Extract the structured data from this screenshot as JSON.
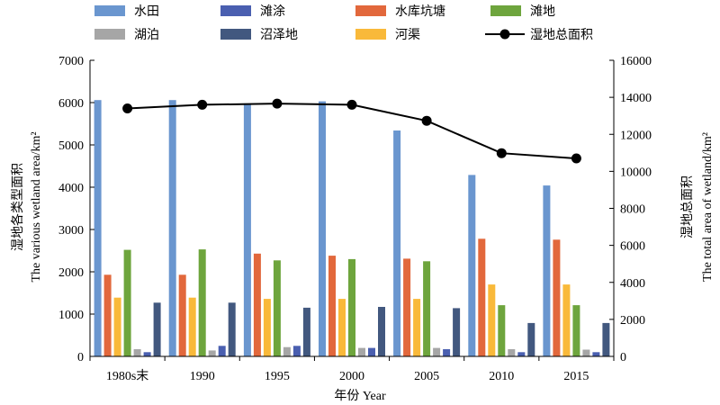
{
  "chart_data": {
    "type": "bar",
    "categories": [
      "1980s末",
      "1990",
      "1995",
      "2000",
      "2005",
      "2010",
      "2015"
    ],
    "series": [
      {
        "name": "水田",
        "color": "#6a96cf",
        "values": [
          6060,
          6060,
          5980,
          6030,
          5340,
          4290,
          4040
        ]
      },
      {
        "name": "水库坑塘",
        "color": "#e2683c",
        "values": [
          1930,
          1930,
          2430,
          2380,
          2310,
          2780,
          2760
        ]
      },
      {
        "name": "河渠",
        "color": "#f9b93a",
        "values": [
          1390,
          1390,
          1360,
          1360,
          1360,
          1700,
          1700
        ]
      },
      {
        "name": "滩地",
        "color": "#6ea53d",
        "values": [
          2520,
          2530,
          2270,
          2300,
          2250,
          1210,
          1210
        ]
      },
      {
        "name": "湖泊",
        "color": "#a6a6a6",
        "values": [
          170,
          140,
          220,
          200,
          200,
          170,
          160
        ]
      },
      {
        "name": "滩涂",
        "color": "#4a5fb0",
        "values": [
          100,
          250,
          250,
          200,
          170,
          100,
          100
        ]
      },
      {
        "name": "沼泽地",
        "color": "#42587f",
        "values": [
          1270,
          1270,
          1150,
          1170,
          1140,
          790,
          790
        ]
      }
    ],
    "line_series": {
      "name": "湿地总面积",
      "color": "#000000",
      "values": [
        13400,
        13600,
        13660,
        13600,
        12730,
        10980,
        10700
      ]
    },
    "xlabel": "年份 Year",
    "ylabel_lines": [
      "湿地各类型面积",
      "The various wetland area/km²"
    ],
    "y2label_lines": [
      "湿地总面积",
      "The total area of wetland/km²"
    ],
    "ylim": [
      0,
      7000
    ],
    "yticks": [
      0,
      1000,
      2000,
      3000,
      4000,
      5000,
      6000,
      7000
    ],
    "y2lim": [
      0,
      16000
    ],
    "y2ticks": [
      0,
      2000,
      4000,
      6000,
      8000,
      10000,
      12000,
      14000,
      16000
    ],
    "grid": false,
    "legend": [
      {
        "name": "水田",
        "kind": "bar",
        "color": "#6a96cf"
      },
      {
        "name": "滩涂",
        "kind": "bar",
        "color": "#4a5fb0"
      },
      {
        "name": "水库坑塘",
        "kind": "bar",
        "color": "#e2683c"
      },
      {
        "name": "滩地",
        "kind": "bar",
        "color": "#6ea53d"
      },
      {
        "name": "湖泊",
        "kind": "bar",
        "color": "#a6a6a6"
      },
      {
        "name": "沼泽地",
        "kind": "bar",
        "color": "#42587f"
      },
      {
        "name": "河渠",
        "kind": "bar",
        "color": "#f9b93a"
      },
      {
        "name": "湿地总面积",
        "kind": "line",
        "color": "#000000"
      }
    ],
    "legend_placement": "top"
  }
}
